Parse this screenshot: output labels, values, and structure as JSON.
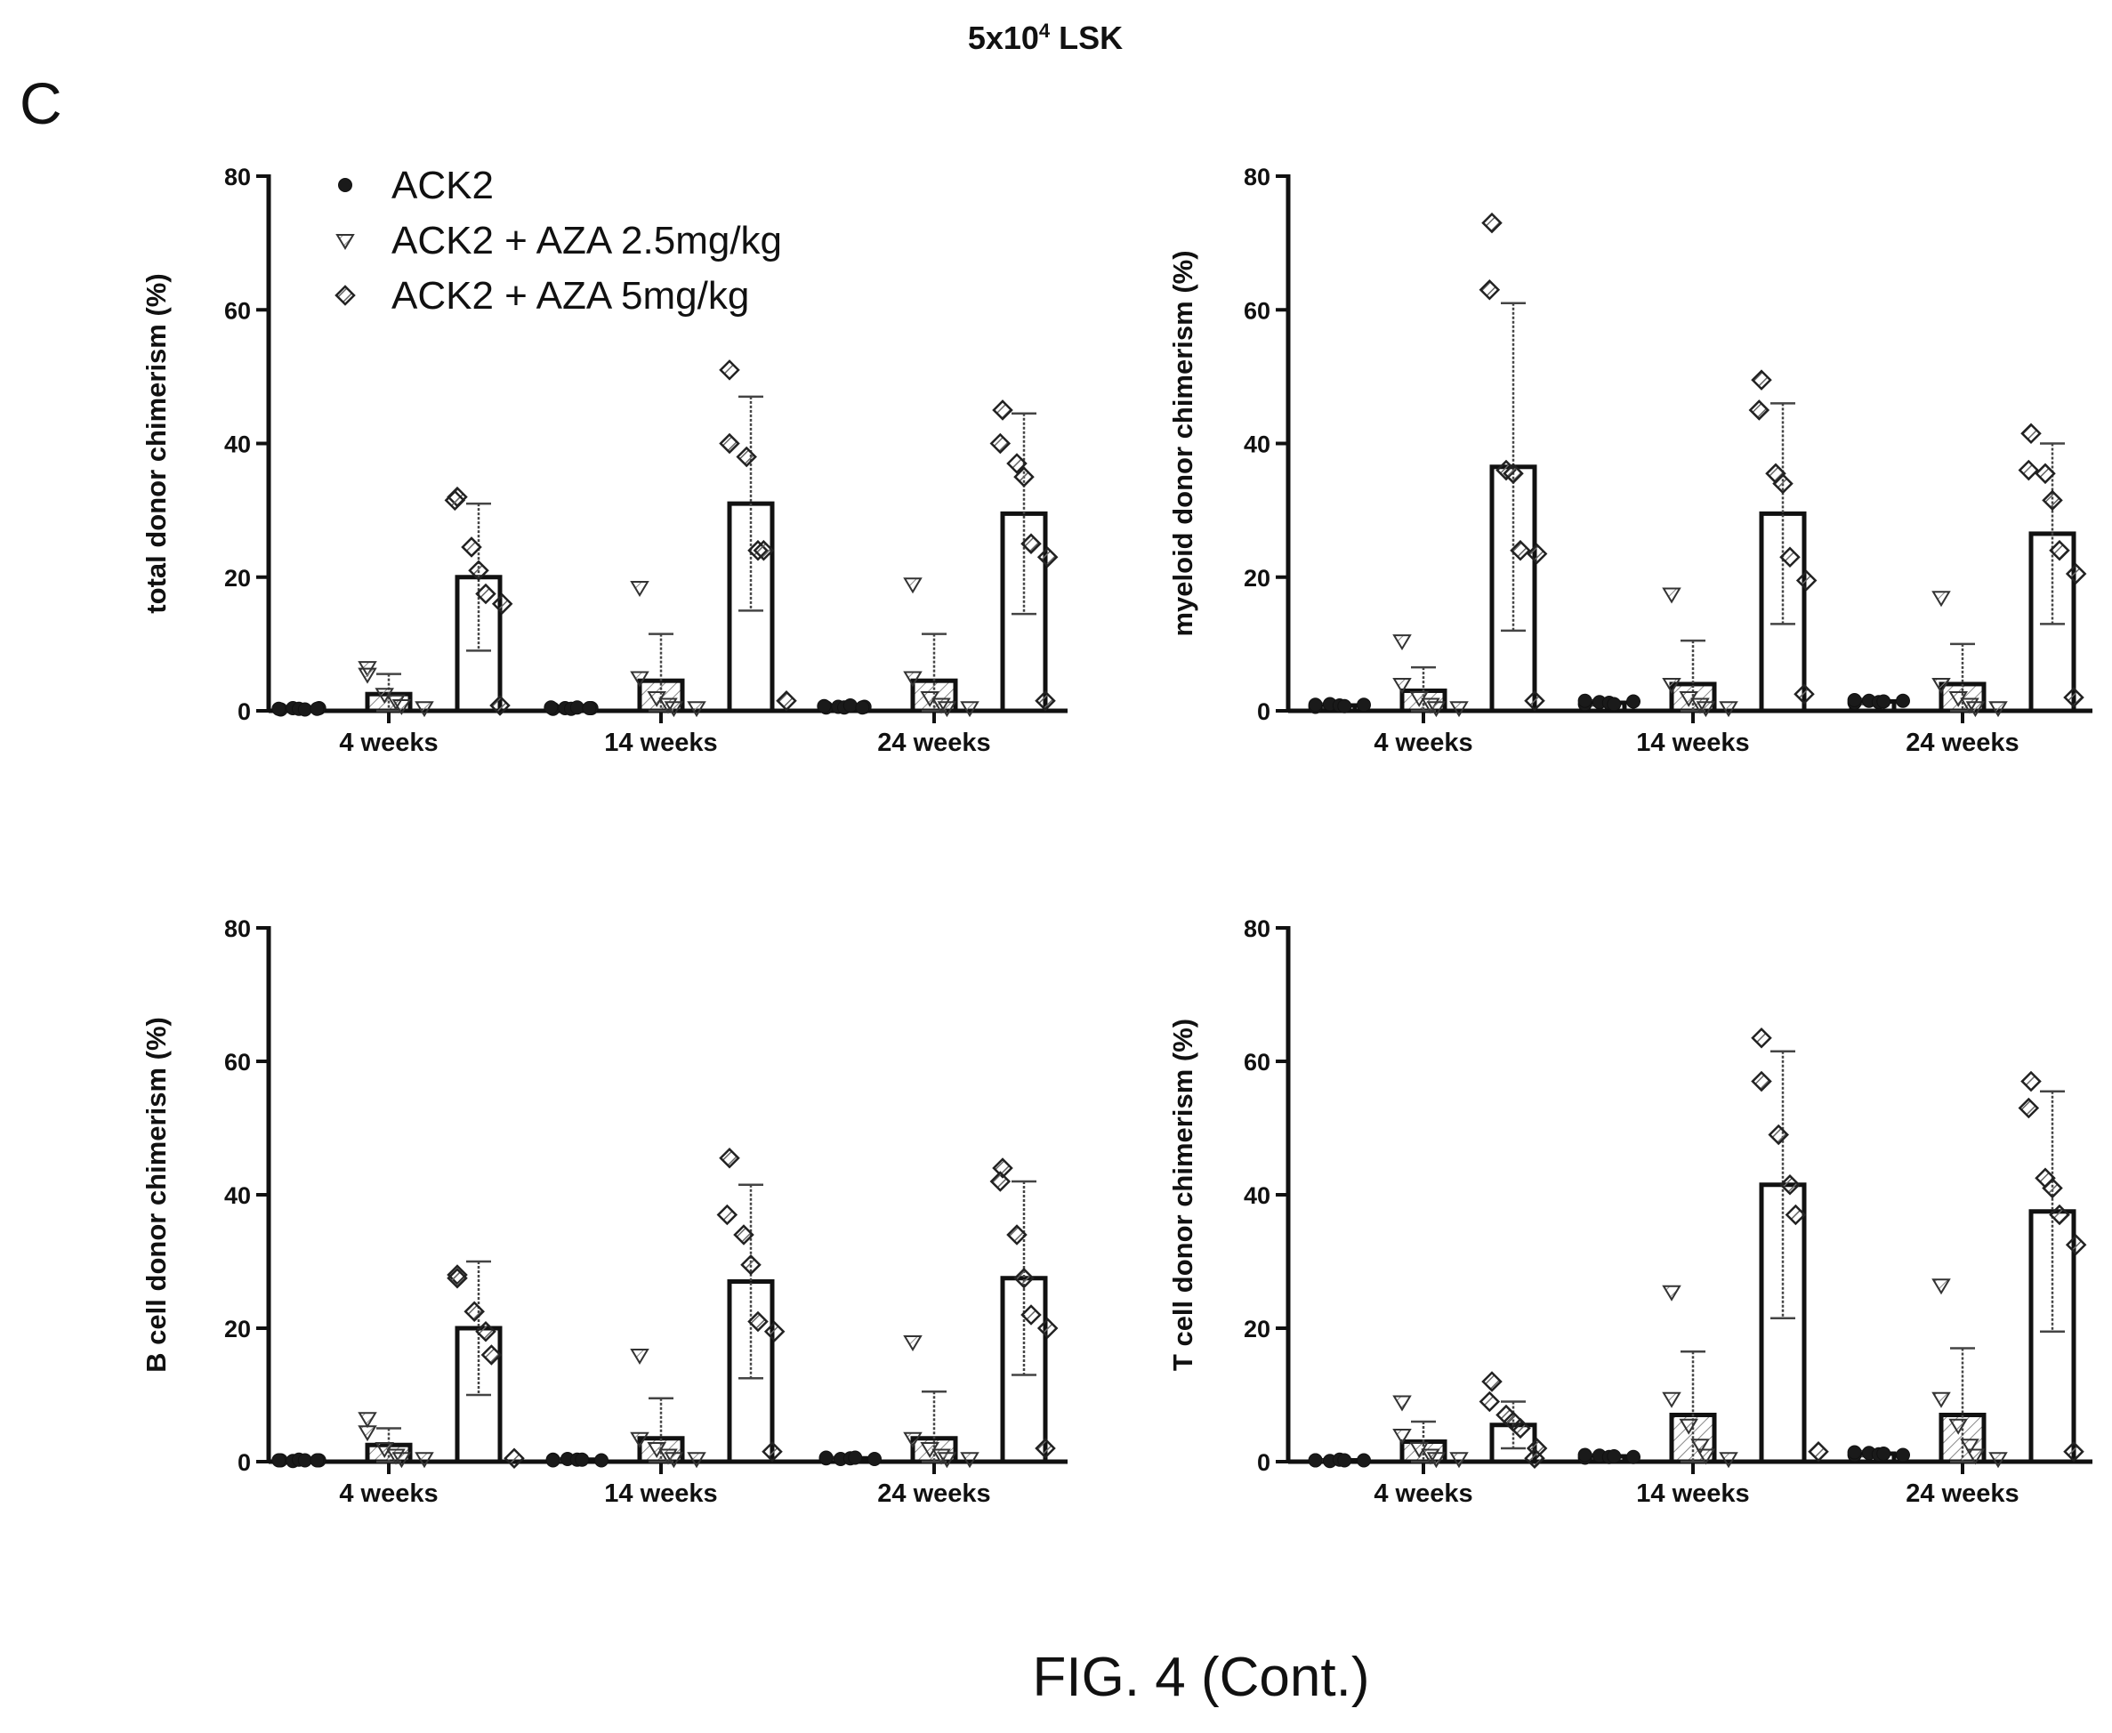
{
  "header": {
    "title_prefix": "5x10",
    "title_sup": "4",
    "title_suffix": " LSK"
  },
  "panel_label": "C",
  "caption": "FIG. 4 (Cont.)",
  "legend": [
    {
      "label": "ACK2",
      "marker": "circle"
    },
    {
      "label": "ACK2 + AZA 2.5mg/kg",
      "marker": "triangle-down"
    },
    {
      "label": "ACK2 + AZA 5mg/kg",
      "marker": "diamond"
    }
  ],
  "colors": {
    "ink": "#111111",
    "bar_fill": "#ffffff",
    "hatch": "#666666"
  },
  "chart_data": [
    {
      "type": "bar",
      "title": "",
      "ylabel": "total donor chimerism (%)",
      "ylim": [
        0,
        80
      ],
      "yticks": [
        0,
        20,
        40,
        60,
        80
      ],
      "categories": [
        "4 weeks",
        "14 weeks",
        "24 weeks"
      ],
      "series": [
        {
          "name": "ACK2",
          "values": [
            0.3,
            0.4,
            0.6
          ],
          "sd": [
            0.2,
            0.3,
            0.3
          ],
          "points": [
            [
              0.2,
              0.3,
              0.4,
              0.3,
              0.2,
              0.4,
              0.3
            ],
            [
              0.3,
              0.5,
              0.4,
              0.3,
              0.5,
              0.4,
              0.4
            ],
            [
              0.5,
              0.7,
              0.6,
              0.5,
              0.8,
              0.6,
              0.5
            ]
          ]
        },
        {
          "name": "ACK2 + AZA 2.5mg/kg",
          "values": [
            2.5,
            4.5,
            4.5
          ],
          "sd": [
            3,
            7,
            7
          ],
          "points": [
            [
              6.5,
              5.5,
              2.5,
              1.5,
              0.8,
              0.5
            ],
            [
              18.5,
              5,
              2,
              1,
              0.5,
              0.5
            ],
            [
              19,
              5,
              2,
              1,
              0.5,
              0.5
            ]
          ]
        },
        {
          "name": "ACK2 + AZA 5mg/kg",
          "values": [
            20,
            31,
            29.5
          ],
          "sd": [
            11,
            16,
            15
          ],
          "points": [
            [
              32,
              31.5,
              24.5,
              21,
              17.5,
              16,
              0.8
            ],
            [
              51,
              40,
              38,
              24,
              24,
              1.5
            ],
            [
              45,
              40,
              37,
              35,
              25,
              23,
              1.5
            ]
          ]
        }
      ]
    },
    {
      "type": "bar",
      "title": "",
      "ylabel": "myeloid donor chimerism (%)",
      "ylim": [
        0,
        80
      ],
      "yticks": [
        0,
        20,
        40,
        60,
        80
      ],
      "categories": [
        "4 weeks",
        "14 weeks",
        "24 weeks"
      ],
      "series": [
        {
          "name": "ACK2",
          "values": [
            0.8,
            1.2,
            1.4
          ],
          "sd": [
            0.3,
            0.4,
            0.4
          ],
          "points": [
            [
              0.6,
              0.9,
              1,
              0.8,
              0.7,
              0.9
            ],
            [
              1,
              1.5,
              1.3,
              1.2,
              1,
              1.4
            ],
            [
              1.2,
              1.6,
              1.5,
              1.3,
              1.4,
              1.5
            ]
          ]
        },
        {
          "name": "ACK2 + AZA 2.5mg/kg",
          "values": [
            3,
            4,
            4
          ],
          "sd": [
            3.5,
            6.5,
            6
          ],
          "points": [
            [
              10.5,
              4,
              2,
              1,
              0.5,
              0.5
            ],
            [
              17.5,
              4,
              2,
              1,
              0.5,
              0.5
            ],
            [
              17,
              4,
              2,
              1,
              0.5,
              0.5
            ]
          ]
        },
        {
          "name": "ACK2 + AZA 5mg/kg",
          "values": [
            36.5,
            29.5,
            26.5
          ],
          "sd": [
            24.5,
            16.5,
            13.5
          ],
          "points": [
            [
              73,
              63,
              36,
              35.5,
              24,
              23.5,
              1.5
            ],
            [
              49.5,
              45,
              35.5,
              34,
              23,
              19.5,
              2.5
            ],
            [
              41.5,
              36,
              35.5,
              31.5,
              24,
              20.5,
              2
            ]
          ]
        }
      ]
    },
    {
      "type": "bar",
      "title": "",
      "ylabel": "B cell donor chimerism (%)",
      "ylim": [
        0,
        80
      ],
      "yticks": [
        0,
        20,
        40,
        60,
        80
      ],
      "categories": [
        "4 weeks",
        "14 weeks",
        "24 weeks"
      ],
      "series": [
        {
          "name": "ACK2",
          "values": [
            0.2,
            0.3,
            0.5
          ],
          "sd": [
            0.1,
            0.2,
            0.2
          ],
          "points": [
            [
              0.2,
              0.2,
              0.1,
              0.3,
              0.2,
              0.2,
              0.2
            ],
            [
              0.3,
              0.2,
              0.4,
              0.3,
              0.3,
              0.2
            ],
            [
              0.5,
              0.6,
              0.4,
              0.5,
              0.6,
              0.4
            ]
          ]
        },
        {
          "name": "ACK2 + AZA 2.5mg/kg",
          "values": [
            2.5,
            3.5,
            3.5
          ],
          "sd": [
            2.5,
            6,
            7
          ],
          "points": [
            [
              6.5,
              4.5,
              2,
              1,
              0.5,
              0.5
            ],
            [
              16,
              3.5,
              2,
              1,
              0.5,
              0.5
            ],
            [
              18,
              3.5,
              2,
              1,
              0.5,
              0.5
            ]
          ]
        },
        {
          "name": "ACK2 + AZA 5mg/kg",
          "values": [
            20,
            27,
            27.5
          ],
          "sd": [
            10,
            14.5,
            14.5
          ],
          "points": [
            [
              28,
              27.5,
              22.5,
              19.5,
              16,
              0.5
            ],
            [
              45.5,
              37,
              34,
              29.5,
              21,
              19.5,
              1.5
            ],
            [
              44,
              42,
              34,
              27.5,
              22,
              20,
              2
            ]
          ]
        }
      ]
    },
    {
      "type": "bar",
      "title": "",
      "ylabel": "T cell donor chimerism (%)",
      "ylim": [
        0,
        80
      ],
      "yticks": [
        0,
        20,
        40,
        60,
        80
      ],
      "categories": [
        "4 weeks",
        "14 weeks",
        "24 weeks"
      ],
      "series": [
        {
          "name": "ACK2",
          "values": [
            0.2,
            0.8,
            1.2
          ],
          "sd": [
            0.1,
            0.3,
            0.4
          ],
          "points": [
            [
              0.2,
              0.2,
              0.1,
              0.3,
              0.2,
              0.2
            ],
            [
              0.6,
              1,
              0.9,
              0.7,
              0.8,
              0.7
            ],
            [
              1,
              1.4,
              1.3,
              1.1,
              1.2,
              1
            ]
          ]
        },
        {
          "name": "ACK2 + AZA 2.5mg/kg",
          "values": [
            3,
            7,
            7
          ],
          "sd": [
            3,
            9.5,
            10
          ],
          "points": [
            [
              9,
              4,
              2,
              1,
              0.5,
              0.5
            ],
            [
              25.5,
              9.5,
              5.5,
              2.5,
              1,
              0.5
            ],
            [
              26.5,
              9.5,
              5.5,
              2.5,
              1,
              0.5
            ]
          ]
        },
        {
          "name": "ACK2 + AZA 5mg/kg",
          "values": [
            5.5,
            41.5,
            37.5
          ],
          "sd": [
            3.5,
            20,
            18
          ],
          "points": [
            [
              12,
              9,
              7,
              6,
              5,
              2,
              0.5
            ],
            [
              63.5,
              57,
              49,
              41.5,
              37,
              1.5
            ],
            [
              57,
              53,
              42.5,
              41,
              37,
              32.5,
              1.5
            ]
          ]
        }
      ]
    }
  ]
}
